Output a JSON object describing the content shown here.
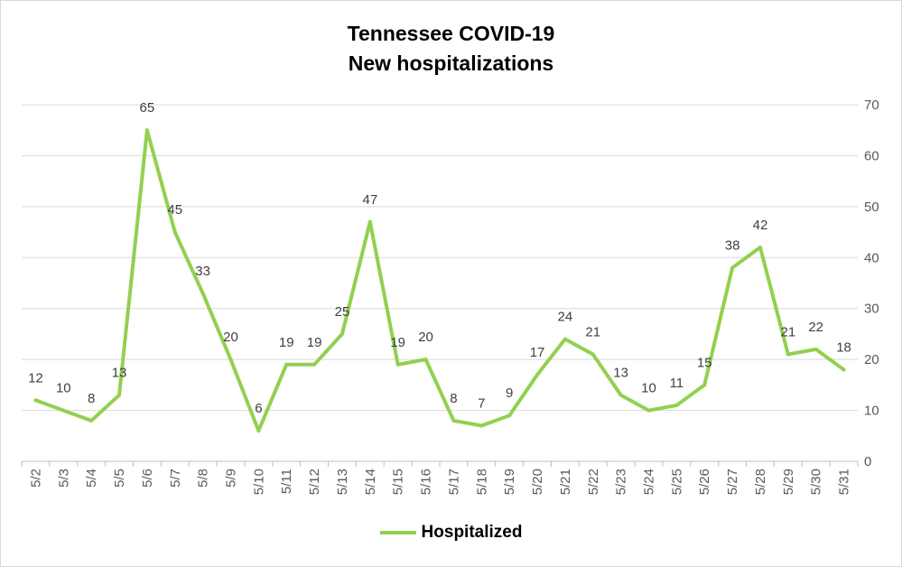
{
  "chart_data": {
    "type": "line",
    "title": "Tennessee COVID-19",
    "subtitle": "New hospitalizations",
    "xlabel": "",
    "ylabel": "",
    "ylim": [
      0,
      70
    ],
    "yticks": [
      0,
      10,
      20,
      30,
      40,
      50,
      60,
      70
    ],
    "y_axis_side": "right",
    "grid": true,
    "legend_position": "bottom",
    "categories": [
      "5/2",
      "5/3",
      "5/4",
      "5/5",
      "5/6",
      "5/7",
      "5/8",
      "5/9",
      "5/10",
      "5/11",
      "5/12",
      "5/13",
      "5/14",
      "5/15",
      "5/16",
      "5/17",
      "5/18",
      "5/19",
      "5/20",
      "5/21",
      "5/22",
      "5/23",
      "5/24",
      "5/25",
      "5/26",
      "5/27",
      "5/28",
      "5/29",
      "5/30",
      "5/31"
    ],
    "series": [
      {
        "name": "Hospitalized",
        "color": "#92d050",
        "values": [
          12,
          10,
          8,
          13,
          65,
          45,
          33,
          20,
          6,
          19,
          19,
          25,
          47,
          19,
          20,
          8,
          7,
          9,
          17,
          24,
          21,
          13,
          10,
          11,
          15,
          38,
          42,
          21,
          22,
          18
        ]
      }
    ]
  }
}
